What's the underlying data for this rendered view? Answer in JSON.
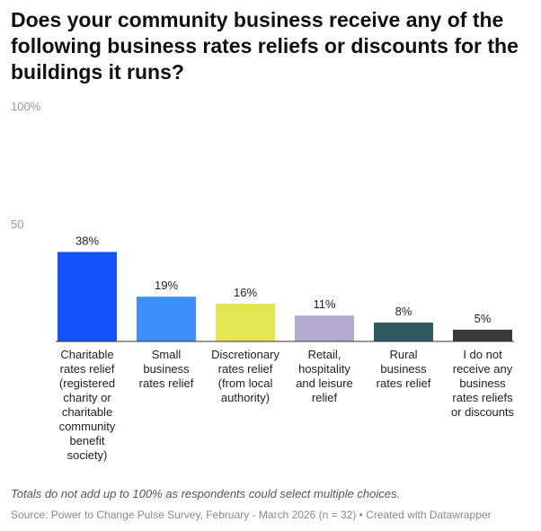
{
  "chart_data": {
    "type": "bar",
    "title": "Does your community business receive any of the following business rates reliefs or discounts for the buildings it runs?",
    "categories": [
      [
        "Charitable",
        "rates relief",
        "(registered",
        "charity or",
        "charitable",
        "community",
        "benefit",
        "society)"
      ],
      [
        "Small",
        "business",
        "rates relief"
      ],
      [
        "Discretionary",
        "rates relief",
        "(from local",
        "authority)"
      ],
      [
        "Retail,",
        "hospitality",
        "and leisure",
        "relief"
      ],
      [
        "Rural",
        "business",
        "rates relief"
      ],
      [
        "I do not",
        "receive any",
        "business",
        "rates reliefs",
        "or discounts"
      ]
    ],
    "values": [
      38,
      19,
      16,
      11,
      8,
      5
    ],
    "value_labels": [
      "38%",
      "19%",
      "16%",
      "11%",
      "8%",
      "5%"
    ],
    "colors": [
      "#1452fa",
      "#3e8ffb",
      "#e3e551",
      "#b3acd0",
      "#2f5860",
      "#3a3a3a"
    ],
    "ylim": [
      0,
      100
    ],
    "yticks": [
      {
        "value": 100,
        "label": "100%"
      },
      {
        "value": 50,
        "label": "50"
      }
    ],
    "notes": "Totals do not add up to 100% as respondents could select multiple choices.",
    "source": "Source: Power to Change Pulse Survey, February - March 2026 (n = 32) • Created with Datawrapper"
  }
}
